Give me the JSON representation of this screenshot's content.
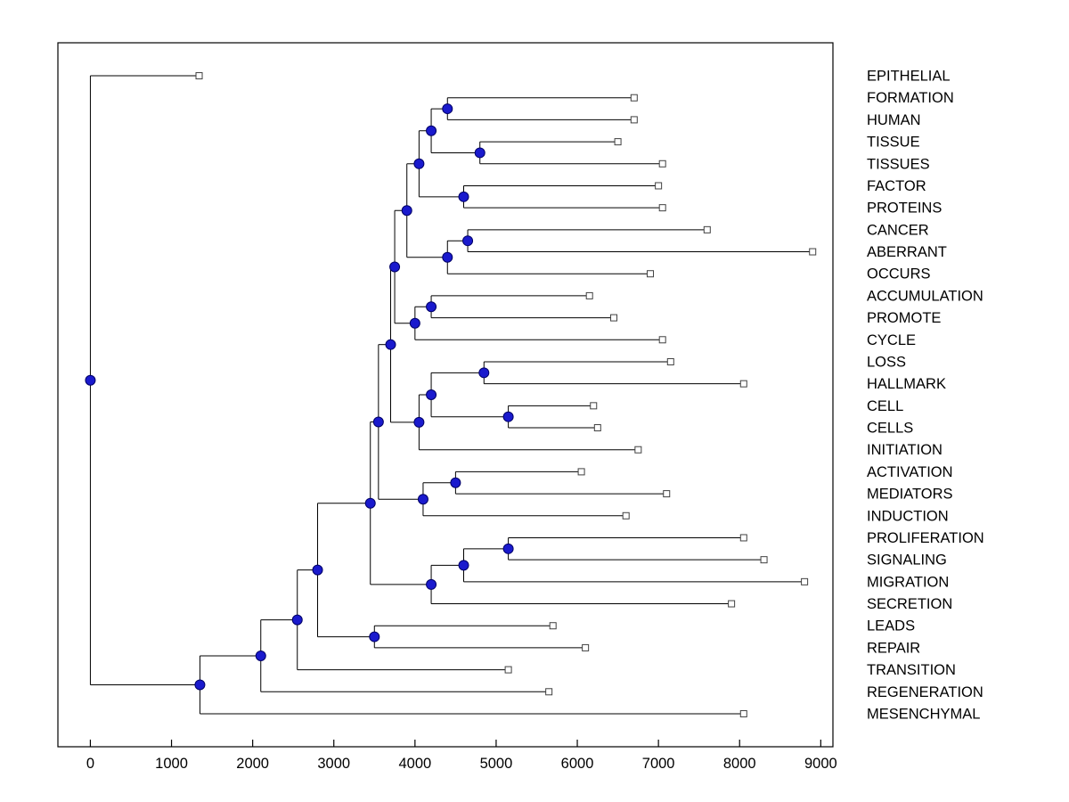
{
  "figure": {
    "title": "",
    "background": "#ffffff"
  },
  "style": {
    "line_color": "#000000",
    "node_fill": "#1a1acd",
    "node_stroke": "#000066",
    "leaf_fill": "#ffffff",
    "leaf_stroke": "#404040",
    "axis_color": "#000000",
    "label_color": "#000000"
  },
  "chart_data": {
    "type": "dendrogram",
    "orientation": "left-to-right",
    "title": "",
    "xlabel": "",
    "ylabel": "",
    "grid": false,
    "legend": false,
    "x_ticks": [
      0,
      1000,
      2000,
      3000,
      4000,
      5000,
      6000,
      7000,
      8000,
      9000
    ],
    "x_range": [
      -400,
      9150
    ],
    "leaf_order": [
      "EPITHELIAL",
      "FORMATION",
      "HUMAN",
      "TISSUE",
      "TISSUES",
      "FACTOR",
      "PROTEINS",
      "CANCER",
      "ABERRANT",
      "OCCURS",
      "ACCUMULATION",
      "PROMOTE",
      "CYCLE",
      "LOSS",
      "HALLMARK",
      "CELL",
      "CELLS",
      "INITIATION",
      "ACTIVATION",
      "MEDIATORS",
      "INDUCTION",
      "PROLIFERATION",
      "SIGNALING",
      "MIGRATION",
      "SECRETION",
      "LEADS",
      "REPAIR",
      "TRANSITION",
      "REGENERATION",
      "MESENCHYMAL"
    ],
    "leaf_values": {
      "EPITHELIAL": 1340,
      "FORMATION": 6700,
      "HUMAN": 6700,
      "TISSUE": 6500,
      "TISSUES": 7050,
      "FACTOR": 7000,
      "PROTEINS": 7050,
      "CANCER": 7600,
      "ABERRANT": 8900,
      "OCCURS": 6900,
      "ACCUMULATION": 6150,
      "PROMOTE": 6450,
      "CYCLE": 7050,
      "LOSS": 7150,
      "HALLMARK": 8050,
      "CELL": 6200,
      "CELLS": 6250,
      "INITIATION": 6750,
      "ACTIVATION": 6050,
      "MEDIATORS": 7100,
      "INDUCTION": 6600,
      "PROLIFERATION": 8050,
      "SIGNALING": 8300,
      "MIGRATION": 8800,
      "SECRETION": 7900,
      "LEADS": 5700,
      "REPAIR": 6100,
      "TRANSITION": 5150,
      "REGENERATION": 5650,
      "MESENCHYMAL": 8050
    },
    "tree": {
      "value": 0,
      "children": [
        {
          "leaf": "EPITHELIAL",
          "value": 1340
        },
        {
          "value": 1350,
          "children": [
            {
              "value": 2100,
              "children": [
                {
                  "value": 2550,
                  "children": [
                    {
                      "value": 2800,
                      "children": [
                        {
                          "value": 3450,
                          "children": [
                            {
                              "value": 3550,
                              "children": [
                                {
                                  "value": 3700,
                                  "children": [
                                    {
                                      "value": 3750,
                                      "children": [
                                        {
                                          "value": 3900,
                                          "children": [
                                            {
                                              "value": 4050,
                                              "children": [
                                                {
                                                  "value": 4200,
                                                  "children": [
                                                    {
                                                      "value": 4400,
                                                      "children": [
                                                        {
                                                          "leaf": "FORMATION",
                                                          "value": 6700
                                                        },
                                                        {
                                                          "leaf": "HUMAN",
                                                          "value": 6700
                                                        }
                                                      ]
                                                    },
                                                    {
                                                      "value": 4800,
                                                      "children": [
                                                        {
                                                          "leaf": "TISSUE",
                                                          "value": 6500
                                                        },
                                                        {
                                                          "leaf": "TISSUES",
                                                          "value": 7050
                                                        }
                                                      ]
                                                    }
                                                  ]
                                                },
                                                {
                                                  "value": 4600,
                                                  "children": [
                                                    {
                                                      "leaf": "FACTOR",
                                                      "value": 7000
                                                    },
                                                    {
                                                      "leaf": "PROTEINS",
                                                      "value": 7050
                                                    }
                                                  ]
                                                }
                                              ]
                                            },
                                            {
                                              "value": 4400,
                                              "children": [
                                                {
                                                  "value": 4650,
                                                  "children": [
                                                    {
                                                      "leaf": "CANCER",
                                                      "value": 7600
                                                    },
                                                    {
                                                      "leaf": "ABERRANT",
                                                      "value": 8900
                                                    }
                                                  ]
                                                },
                                                {
                                                  "leaf": "OCCURS",
                                                  "value": 6900
                                                }
                                              ]
                                            }
                                          ]
                                        },
                                        {
                                          "value": 4000,
                                          "children": [
                                            {
                                              "value": 4200,
                                              "children": [
                                                {
                                                  "leaf": "ACCUMULATION",
                                                  "value": 6150
                                                },
                                                {
                                                  "leaf": "PROMOTE",
                                                  "value": 6450
                                                }
                                              ]
                                            },
                                            {
                                              "leaf": "CYCLE",
                                              "value": 7050
                                            }
                                          ]
                                        }
                                      ]
                                    },
                                    {
                                      "value": 4050,
                                      "children": [
                                        {
                                          "value": 4200,
                                          "children": [
                                            {
                                              "value": 4850,
                                              "children": [
                                                {
                                                  "leaf": "LOSS",
                                                  "value": 7150
                                                },
                                                {
                                                  "leaf": "HALLMARK",
                                                  "value": 8050
                                                }
                                              ]
                                            },
                                            {
                                              "value": 5150,
                                              "children": [
                                                {
                                                  "leaf": "CELL",
                                                  "value": 6200
                                                },
                                                {
                                                  "leaf": "CELLS",
                                                  "value": 6250
                                                }
                                              ]
                                            }
                                          ]
                                        },
                                        {
                                          "leaf": "INITIATION",
                                          "value": 6750
                                        }
                                      ]
                                    }
                                  ]
                                },
                                {
                                  "value": 4100,
                                  "children": [
                                    {
                                      "value": 4500,
                                      "children": [
                                        {
                                          "leaf": "ACTIVATION",
                                          "value": 6050
                                        },
                                        {
                                          "leaf": "MEDIATORS",
                                          "value": 7100
                                        }
                                      ]
                                    },
                                    {
                                      "leaf": "INDUCTION",
                                      "value": 6600
                                    }
                                  ]
                                }
                              ]
                            },
                            {
                              "value": 4200,
                              "children": [
                                {
                                  "value": 4600,
                                  "children": [
                                    {
                                      "value": 5150,
                                      "children": [
                                        {
                                          "leaf": "PROLIFERATION",
                                          "value": 8050
                                        },
                                        {
                                          "leaf": "SIGNALING",
                                          "value": 8300
                                        }
                                      ]
                                    },
                                    {
                                      "leaf": "MIGRATION",
                                      "value": 8800
                                    }
                                  ]
                                },
                                {
                                  "leaf": "SECRETION",
                                  "value": 7900
                                }
                              ]
                            }
                          ]
                        },
                        {
                          "value": 3500,
                          "children": [
                            {
                              "leaf": "LEADS",
                              "value": 5700
                            },
                            {
                              "leaf": "REPAIR",
                              "value": 6100
                            }
                          ]
                        }
                      ]
                    },
                    {
                      "leaf": "TRANSITION",
                      "value": 5150
                    }
                  ]
                },
                {
                  "leaf": "REGENERATION",
                  "value": 5650
                }
              ]
            },
            {
              "leaf": "MESENCHYMAL",
              "value": 8050
            }
          ]
        }
      ]
    }
  }
}
